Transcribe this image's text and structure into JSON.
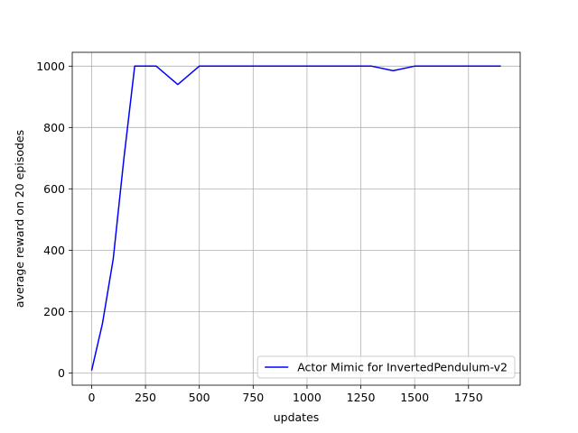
{
  "chart_data": {
    "type": "line",
    "title": "",
    "xlabel": "updates",
    "ylabel": "average reward on 20 episodes",
    "xlim": [
      -90,
      1990
    ],
    "ylim": [
      -40,
      1045
    ],
    "xticks": [
      0,
      250,
      500,
      750,
      1000,
      1250,
      1500,
      1750
    ],
    "yticks": [
      0,
      200,
      400,
      600,
      800,
      1000
    ],
    "grid": true,
    "legend": {
      "position": "lower-right"
    },
    "series": [
      {
        "name": "Actor Mimic for InvertedPendulum-v2",
        "color": "#0000ff",
        "x": [
          0,
          50,
          100,
          150,
          200,
          300,
          400,
          500,
          600,
          700,
          800,
          900,
          1000,
          1100,
          1200,
          1300,
          1400,
          1500,
          1600,
          1700,
          1800,
          1900
        ],
        "y": [
          8,
          160,
          370,
          700,
          1000,
          1000,
          940,
          1000,
          1000,
          1000,
          1000,
          1000,
          1000,
          1000,
          1000,
          1000,
          985,
          1000,
          1000,
          1000,
          1000,
          1000
        ]
      }
    ]
  }
}
